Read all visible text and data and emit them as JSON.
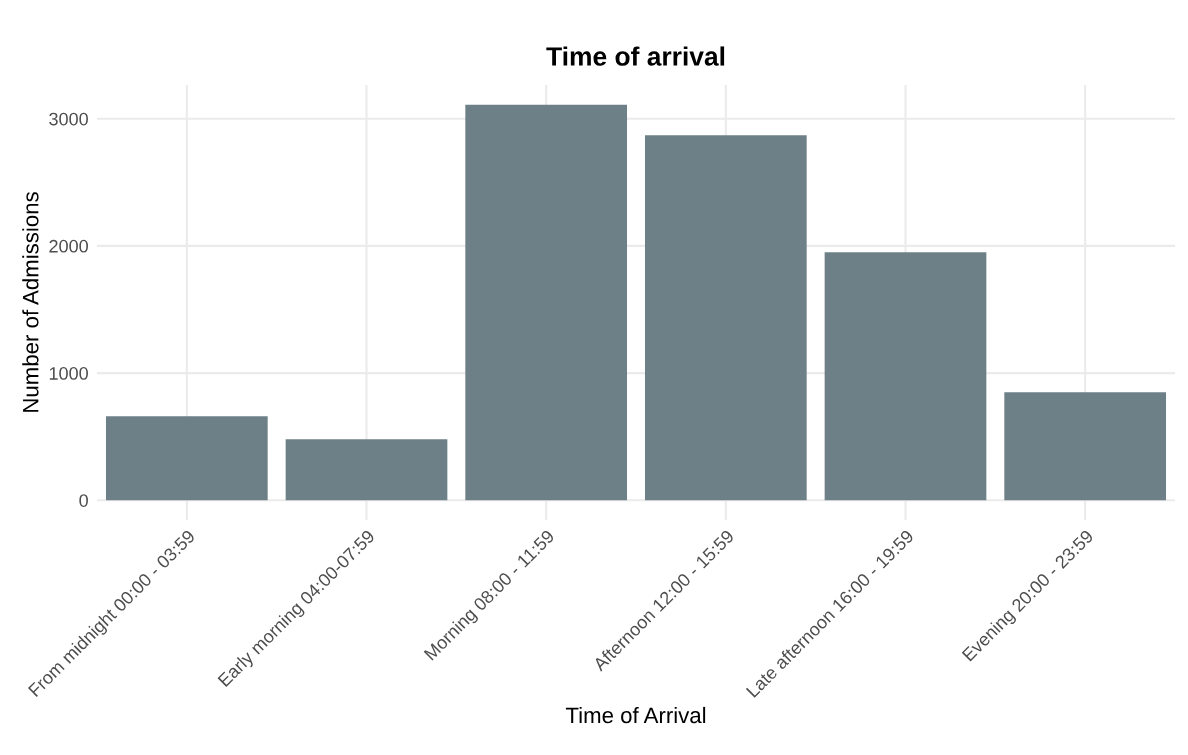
{
  "chart_data": {
    "type": "bar",
    "title": "Time of arrival",
    "xlabel": "Time of Arrival",
    "ylabel": "Number of Admissions",
    "categories": [
      "From midnight 00:00 - 03:59",
      "Early morning 04:00-07:59",
      "Morning 08:00 - 11:59",
      "Afternoon 12:00 - 15:59",
      "Late afternoon 16:00 - 19:59",
      "Evening 20:00 - 23:59"
    ],
    "values": [
      660,
      480,
      3110,
      2870,
      1950,
      850
    ],
    "color": "#6e8087",
    "ylim": [
      -155,
      3265
    ],
    "yticks": [
      0,
      1000,
      2000,
      3000
    ],
    "grid": true
  }
}
